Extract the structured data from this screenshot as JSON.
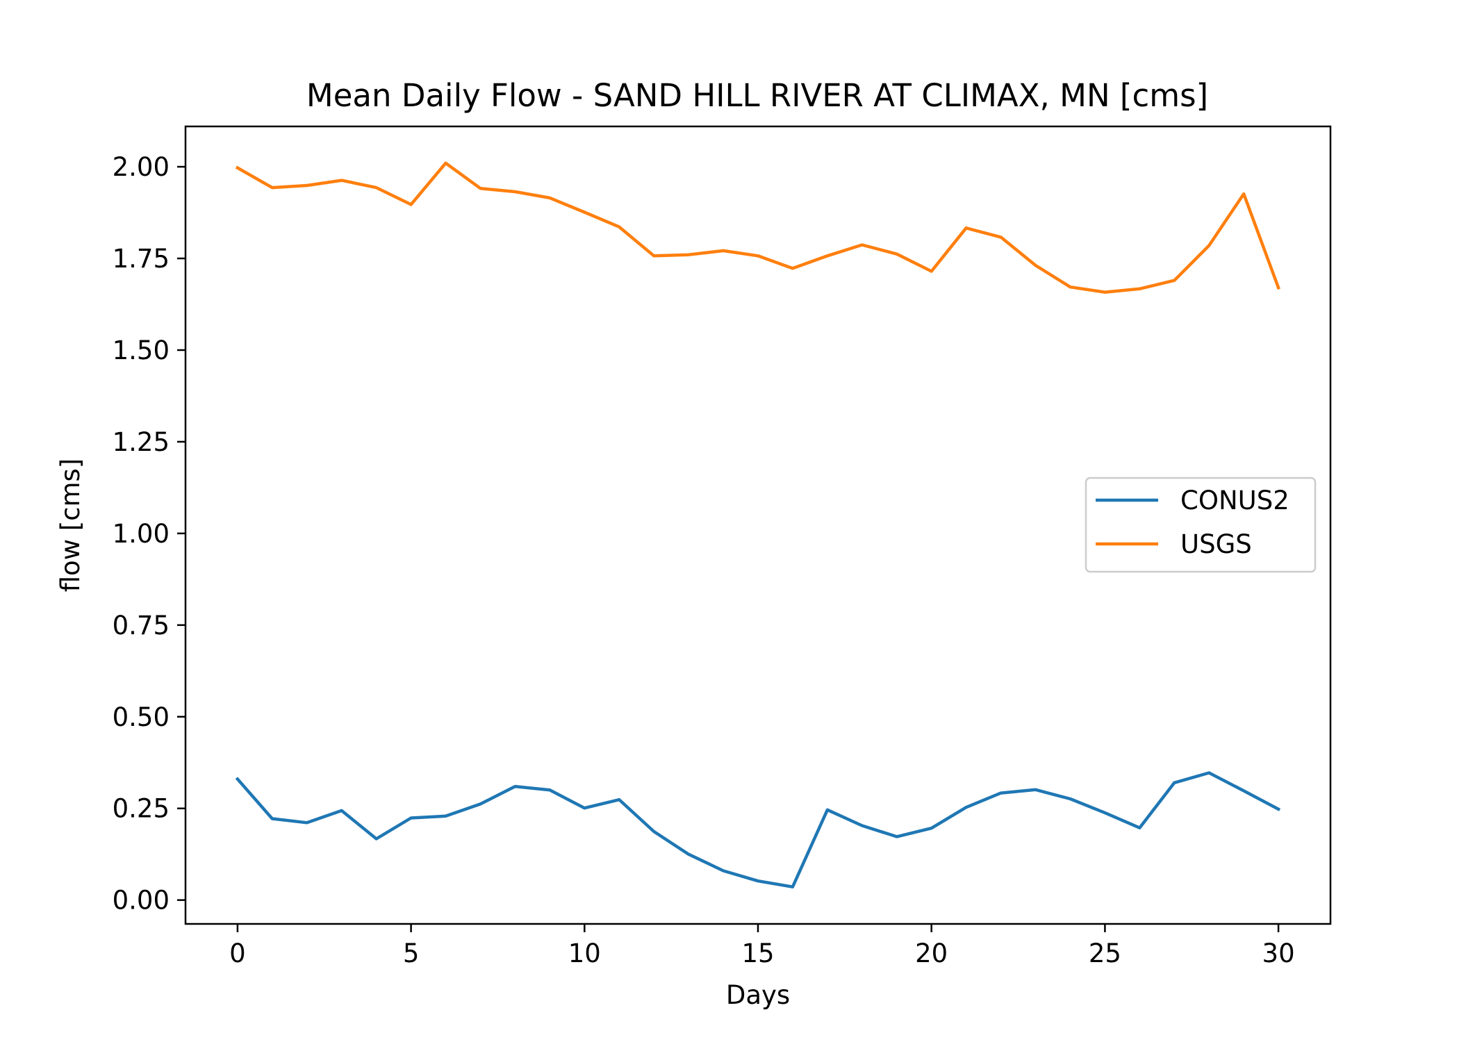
{
  "chart_data": {
    "type": "line",
    "title": "Mean Daily Flow - SAND HILL RIVER AT CLIMAX, MN [cms]",
    "xlabel": "Days",
    "ylabel": "flow [cms]",
    "xlim": [
      -1.5,
      31.5
    ],
    "ylim": [
      -0.065,
      2.11
    ],
    "xticks": [
      0,
      5,
      10,
      15,
      20,
      25,
      30
    ],
    "yticks": [
      0.0,
      0.25,
      0.5,
      0.75,
      1.0,
      1.25,
      1.5,
      1.75,
      2.0
    ],
    "ytick_labels": [
      "0.00",
      "0.25",
      "0.50",
      "0.75",
      "1.00",
      "1.25",
      "1.50",
      "1.75",
      "2.00"
    ],
    "grid": false,
    "legend_position": "center-right",
    "x": [
      0,
      1,
      2,
      3,
      4,
      5,
      6,
      7,
      8,
      9,
      10,
      11,
      12,
      13,
      14,
      15,
      16,
      17,
      18,
      19,
      20,
      21,
      22,
      23,
      24,
      25,
      26,
      27,
      28,
      29,
      30
    ],
    "series": [
      {
        "name": "CONUS2",
        "color": "#1f77b4",
        "values": [
          0.33,
          0.222,
          0.211,
          0.244,
          0.167,
          0.224,
          0.229,
          0.262,
          0.31,
          0.3,
          0.251,
          0.274,
          0.187,
          0.125,
          0.08,
          0.052,
          0.036,
          0.246,
          0.203,
          0.173,
          0.196,
          0.253,
          0.292,
          0.301,
          0.276,
          0.238,
          0.197,
          0.32,
          0.347,
          0.298,
          0.248
        ]
      },
      {
        "name": "USGS",
        "color": "#ff7f0e",
        "values": [
          1.997,
          1.943,
          1.949,
          1.963,
          1.943,
          1.897,
          2.01,
          1.941,
          1.932,
          1.915,
          1.876,
          1.836,
          1.757,
          1.76,
          1.771,
          1.757,
          1.723,
          1.757,
          1.787,
          1.762,
          1.715,
          1.833,
          1.808,
          1.731,
          1.672,
          1.658,
          1.667,
          1.69,
          1.785,
          1.926,
          1.67
        ]
      }
    ]
  }
}
